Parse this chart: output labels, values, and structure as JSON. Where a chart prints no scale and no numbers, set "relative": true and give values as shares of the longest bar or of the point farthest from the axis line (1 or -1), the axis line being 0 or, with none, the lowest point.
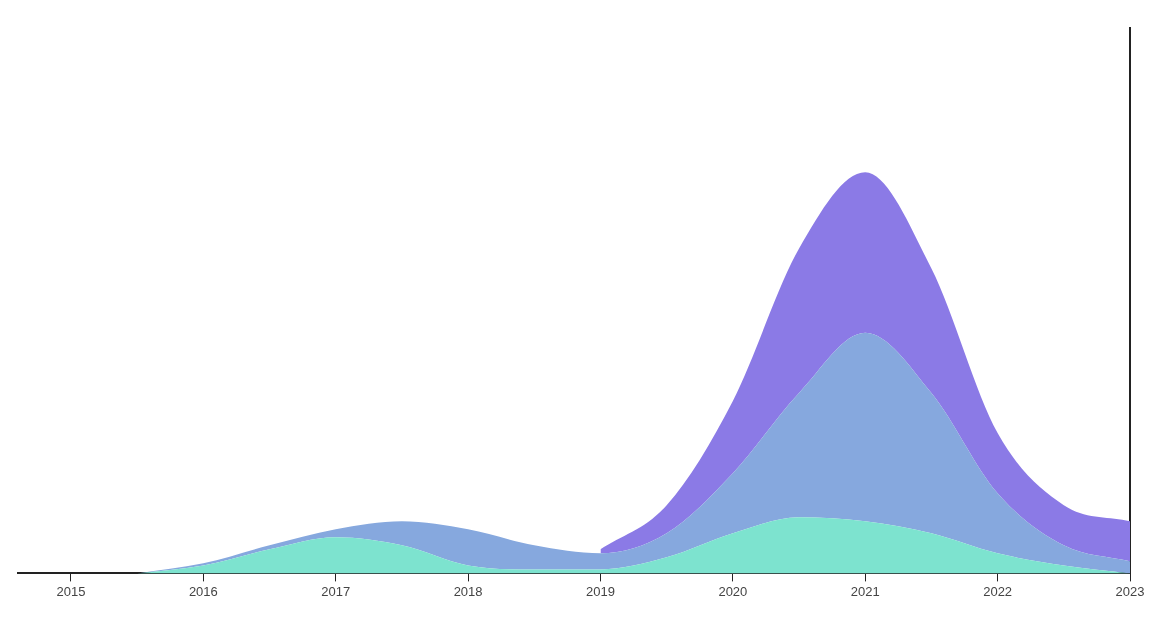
{
  "chart_data": {
    "type": "area",
    "stacked": true,
    "relative": true,
    "x": [
      2015.5,
      2016,
      2016.5,
      2017,
      2017.5,
      2018,
      2018.5,
      2019,
      2019.5,
      2020,
      2020.5,
      2021,
      2021.5,
      2022,
      2022.5,
      2023
    ],
    "xlim": [
      2014.6,
      2023
    ],
    "xticks": [
      2015,
      2016,
      2017,
      2018,
      2019,
      2020,
      2021,
      2022,
      2023
    ],
    "tick_labels": "x",
    "grid": false,
    "legend": false,
    "series": [
      {
        "color": "#7de3cf",
        "values": [
          0,
          0.02,
          0.06,
          0.09,
          0.07,
          0.02,
          0.01,
          0.01,
          0.04,
          0.1,
          0.14,
          0.13,
          0.1,
          0.05,
          0.02,
          0
        ]
      },
      {
        "color": "#86a8de",
        "values": [
          0,
          0.005,
          0.01,
          0.02,
          0.06,
          0.09,
          0.06,
          0.04,
          0.06,
          0.15,
          0.31,
          0.47,
          0.35,
          0.15,
          0.05,
          0.03
        ]
      },
      {
        "color": "#8b7ae6",
        "values": [
          null,
          null,
          null,
          null,
          null,
          null,
          null,
          0.01,
          0.07,
          0.18,
          0.36,
          0.4,
          0.31,
          0.15,
          0.1,
          0.1
        ]
      }
    ]
  }
}
